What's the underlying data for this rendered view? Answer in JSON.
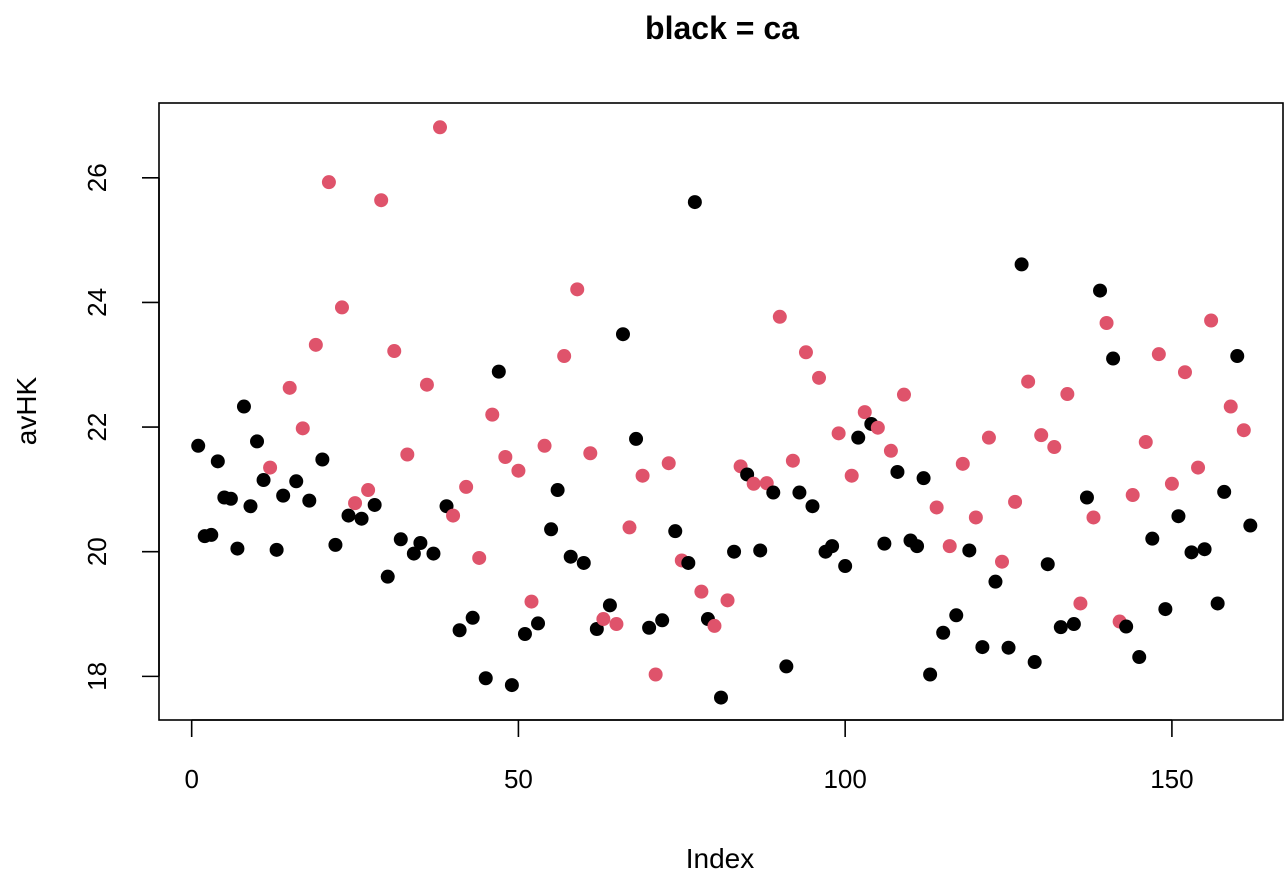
{
  "chart_data": {
    "type": "scatter",
    "title": "black = ca",
    "xlabel": "Index",
    "ylabel": "avHK",
    "xlim": [
      -5,
      167
    ],
    "ylim": [
      17.3,
      27.2
    ],
    "xticks": [
      0,
      50,
      100,
      150
    ],
    "yticks": [
      18,
      20,
      22,
      24,
      26
    ],
    "colors": {
      "ca": "#000000",
      "other": "#df536b"
    },
    "points": [
      {
        "x": 1,
        "y": 21.7,
        "c": "ca"
      },
      {
        "x": 2,
        "y": 20.25,
        "c": "ca"
      },
      {
        "x": 3,
        "y": 20.27,
        "c": "ca"
      },
      {
        "x": 4,
        "y": 21.45,
        "c": "ca"
      },
      {
        "x": 5,
        "y": 20.87,
        "c": "ca"
      },
      {
        "x": 6,
        "y": 20.85,
        "c": "ca"
      },
      {
        "x": 7,
        "y": 20.05,
        "c": "ca"
      },
      {
        "x": 8,
        "y": 22.33,
        "c": "ca"
      },
      {
        "x": 9,
        "y": 20.73,
        "c": "ca"
      },
      {
        "x": 10,
        "y": 21.77,
        "c": "ca"
      },
      {
        "x": 11,
        "y": 21.15,
        "c": "ca"
      },
      {
        "x": 12,
        "y": 21.35,
        "c": "other"
      },
      {
        "x": 13,
        "y": 20.03,
        "c": "ca"
      },
      {
        "x": 14,
        "y": 20.9,
        "c": "ca"
      },
      {
        "x": 15,
        "y": 22.63,
        "c": "other"
      },
      {
        "x": 16,
        "y": 21.13,
        "c": "ca"
      },
      {
        "x": 17,
        "y": 21.98,
        "c": "other"
      },
      {
        "x": 18,
        "y": 20.82,
        "c": "ca"
      },
      {
        "x": 19,
        "y": 23.32,
        "c": "other"
      },
      {
        "x": 20,
        "y": 21.48,
        "c": "ca"
      },
      {
        "x": 21,
        "y": 25.93,
        "c": "other"
      },
      {
        "x": 22,
        "y": 20.11,
        "c": "ca"
      },
      {
        "x": 23,
        "y": 23.92,
        "c": "other"
      },
      {
        "x": 24,
        "y": 20.58,
        "c": "ca"
      },
      {
        "x": 25,
        "y": 20.78,
        "c": "other"
      },
      {
        "x": 26,
        "y": 20.53,
        "c": "ca"
      },
      {
        "x": 27,
        "y": 20.99,
        "c": "other"
      },
      {
        "x": 28,
        "y": 20.75,
        "c": "ca"
      },
      {
        "x": 29,
        "y": 25.64,
        "c": "other"
      },
      {
        "x": 30,
        "y": 19.6,
        "c": "ca"
      },
      {
        "x": 31,
        "y": 23.22,
        "c": "other"
      },
      {
        "x": 32,
        "y": 20.2,
        "c": "ca"
      },
      {
        "x": 33,
        "y": 21.56,
        "c": "other"
      },
      {
        "x": 34,
        "y": 19.97,
        "c": "ca"
      },
      {
        "x": 35,
        "y": 20.14,
        "c": "ca"
      },
      {
        "x": 36,
        "y": 22.68,
        "c": "other"
      },
      {
        "x": 37,
        "y": 19.97,
        "c": "ca"
      },
      {
        "x": 38,
        "y": 26.81,
        "c": "other"
      },
      {
        "x": 39,
        "y": 20.73,
        "c": "ca"
      },
      {
        "x": 40,
        "y": 20.58,
        "c": "other"
      },
      {
        "x": 41,
        "y": 18.74,
        "c": "ca"
      },
      {
        "x": 42,
        "y": 21.04,
        "c": "other"
      },
      {
        "x": 43,
        "y": 18.94,
        "c": "ca"
      },
      {
        "x": 44,
        "y": 19.9,
        "c": "other"
      },
      {
        "x": 45,
        "y": 17.97,
        "c": "ca"
      },
      {
        "x": 46,
        "y": 22.2,
        "c": "other"
      },
      {
        "x": 47,
        "y": 22.89,
        "c": "ca"
      },
      {
        "x": 48,
        "y": 21.52,
        "c": "other"
      },
      {
        "x": 49,
        "y": 17.86,
        "c": "ca"
      },
      {
        "x": 50,
        "y": 21.3,
        "c": "other"
      },
      {
        "x": 51,
        "y": 18.68,
        "c": "ca"
      },
      {
        "x": 52,
        "y": 19.2,
        "c": "other"
      },
      {
        "x": 53,
        "y": 18.85,
        "c": "ca"
      },
      {
        "x": 54,
        "y": 21.7,
        "c": "other"
      },
      {
        "x": 55,
        "y": 20.36,
        "c": "ca"
      },
      {
        "x": 56,
        "y": 20.99,
        "c": "ca"
      },
      {
        "x": 57,
        "y": 23.14,
        "c": "other"
      },
      {
        "x": 58,
        "y": 19.92,
        "c": "ca"
      },
      {
        "x": 59,
        "y": 24.21,
        "c": "other"
      },
      {
        "x": 60,
        "y": 19.82,
        "c": "ca"
      },
      {
        "x": 61,
        "y": 21.58,
        "c": "other"
      },
      {
        "x": 62,
        "y": 18.76,
        "c": "ca"
      },
      {
        "x": 63,
        "y": 18.92,
        "c": "other"
      },
      {
        "x": 64,
        "y": 19.14,
        "c": "ca"
      },
      {
        "x": 65,
        "y": 18.84,
        "c": "other"
      },
      {
        "x": 66,
        "y": 23.49,
        "c": "ca"
      },
      {
        "x": 67,
        "y": 20.39,
        "c": "other"
      },
      {
        "x": 68,
        "y": 21.81,
        "c": "ca"
      },
      {
        "x": 69,
        "y": 21.22,
        "c": "other"
      },
      {
        "x": 70,
        "y": 18.78,
        "c": "ca"
      },
      {
        "x": 71,
        "y": 18.03,
        "c": "other"
      },
      {
        "x": 72,
        "y": 18.9,
        "c": "ca"
      },
      {
        "x": 73,
        "y": 21.42,
        "c": "other"
      },
      {
        "x": 74,
        "y": 20.33,
        "c": "ca"
      },
      {
        "x": 75,
        "y": 19.86,
        "c": "other"
      },
      {
        "x": 76,
        "y": 19.82,
        "c": "ca"
      },
      {
        "x": 77,
        "y": 25.61,
        "c": "ca"
      },
      {
        "x": 78,
        "y": 19.36,
        "c": "other"
      },
      {
        "x": 79,
        "y": 18.92,
        "c": "ca"
      },
      {
        "x": 80,
        "y": 18.81,
        "c": "other"
      },
      {
        "x": 81,
        "y": 17.66,
        "c": "ca"
      },
      {
        "x": 82,
        "y": 19.22,
        "c": "other"
      },
      {
        "x": 83,
        "y": 20.0,
        "c": "ca"
      },
      {
        "x": 84,
        "y": 21.37,
        "c": "other"
      },
      {
        "x": 85,
        "y": 21.24,
        "c": "ca"
      },
      {
        "x": 86,
        "y": 21.09,
        "c": "other"
      },
      {
        "x": 87,
        "y": 20.02,
        "c": "ca"
      },
      {
        "x": 88,
        "y": 21.1,
        "c": "other"
      },
      {
        "x": 89,
        "y": 20.95,
        "c": "ca"
      },
      {
        "x": 90,
        "y": 23.77,
        "c": "other"
      },
      {
        "x": 91,
        "y": 18.16,
        "c": "ca"
      },
      {
        "x": 92,
        "y": 21.46,
        "c": "other"
      },
      {
        "x": 93,
        "y": 20.95,
        "c": "ca"
      },
      {
        "x": 94,
        "y": 23.2,
        "c": "other"
      },
      {
        "x": 95,
        "y": 20.73,
        "c": "ca"
      },
      {
        "x": 96,
        "y": 22.79,
        "c": "other"
      },
      {
        "x": 97,
        "y": 20.0,
        "c": "ca"
      },
      {
        "x": 98,
        "y": 20.09,
        "c": "ca"
      },
      {
        "x": 99,
        "y": 21.9,
        "c": "other"
      },
      {
        "x": 100,
        "y": 19.77,
        "c": "ca"
      },
      {
        "x": 101,
        "y": 21.22,
        "c": "other"
      },
      {
        "x": 102,
        "y": 21.83,
        "c": "ca"
      },
      {
        "x": 103,
        "y": 22.24,
        "c": "other"
      },
      {
        "x": 104,
        "y": 22.05,
        "c": "ca"
      },
      {
        "x": 105,
        "y": 21.99,
        "c": "other"
      },
      {
        "x": 106,
        "y": 20.13,
        "c": "ca"
      },
      {
        "x": 107,
        "y": 21.62,
        "c": "other"
      },
      {
        "x": 108,
        "y": 21.28,
        "c": "ca"
      },
      {
        "x": 109,
        "y": 22.52,
        "c": "other"
      },
      {
        "x": 110,
        "y": 20.18,
        "c": "ca"
      },
      {
        "x": 111,
        "y": 20.09,
        "c": "ca"
      },
      {
        "x": 112,
        "y": 21.18,
        "c": "ca"
      },
      {
        "x": 113,
        "y": 18.03,
        "c": "ca"
      },
      {
        "x": 114,
        "y": 20.71,
        "c": "other"
      },
      {
        "x": 115,
        "y": 18.7,
        "c": "ca"
      },
      {
        "x": 116,
        "y": 20.09,
        "c": "other"
      },
      {
        "x": 117,
        "y": 18.98,
        "c": "ca"
      },
      {
        "x": 118,
        "y": 21.41,
        "c": "other"
      },
      {
        "x": 119,
        "y": 20.02,
        "c": "ca"
      },
      {
        "x": 120,
        "y": 20.55,
        "c": "other"
      },
      {
        "x": 121,
        "y": 18.47,
        "c": "ca"
      },
      {
        "x": 122,
        "y": 21.83,
        "c": "other"
      },
      {
        "x": 123,
        "y": 19.52,
        "c": "ca"
      },
      {
        "x": 124,
        "y": 19.84,
        "c": "other"
      },
      {
        "x": 125,
        "y": 18.46,
        "c": "ca"
      },
      {
        "x": 126,
        "y": 20.8,
        "c": "other"
      },
      {
        "x": 127,
        "y": 24.61,
        "c": "ca"
      },
      {
        "x": 128,
        "y": 22.73,
        "c": "other"
      },
      {
        "x": 129,
        "y": 18.23,
        "c": "ca"
      },
      {
        "x": 130,
        "y": 21.87,
        "c": "other"
      },
      {
        "x": 131,
        "y": 19.8,
        "c": "ca"
      },
      {
        "x": 132,
        "y": 21.68,
        "c": "other"
      },
      {
        "x": 133,
        "y": 18.79,
        "c": "ca"
      },
      {
        "x": 134,
        "y": 22.53,
        "c": "other"
      },
      {
        "x": 135,
        "y": 18.84,
        "c": "ca"
      },
      {
        "x": 136,
        "y": 19.17,
        "c": "other"
      },
      {
        "x": 137,
        "y": 20.87,
        "c": "ca"
      },
      {
        "x": 138,
        "y": 20.55,
        "c": "other"
      },
      {
        "x": 139,
        "y": 24.19,
        "c": "ca"
      },
      {
        "x": 140,
        "y": 23.67,
        "c": "other"
      },
      {
        "x": 141,
        "y": 23.1,
        "c": "ca"
      },
      {
        "x": 142,
        "y": 18.88,
        "c": "other"
      },
      {
        "x": 143,
        "y": 18.8,
        "c": "ca"
      },
      {
        "x": 144,
        "y": 20.91,
        "c": "other"
      },
      {
        "x": 145,
        "y": 18.31,
        "c": "ca"
      },
      {
        "x": 146,
        "y": 21.76,
        "c": "other"
      },
      {
        "x": 147,
        "y": 20.21,
        "c": "ca"
      },
      {
        "x": 148,
        "y": 23.17,
        "c": "other"
      },
      {
        "x": 149,
        "y": 19.08,
        "c": "ca"
      },
      {
        "x": 150,
        "y": 21.09,
        "c": "other"
      },
      {
        "x": 151,
        "y": 20.57,
        "c": "ca"
      },
      {
        "x": 152,
        "y": 22.88,
        "c": "other"
      },
      {
        "x": 153,
        "y": 19.99,
        "c": "ca"
      },
      {
        "x": 154,
        "y": 21.35,
        "c": "other"
      },
      {
        "x": 155,
        "y": 20.04,
        "c": "ca"
      },
      {
        "x": 156,
        "y": 23.71,
        "c": "other"
      },
      {
        "x": 157,
        "y": 19.17,
        "c": "ca"
      },
      {
        "x": 158,
        "y": 20.96,
        "c": "ca"
      },
      {
        "x": 159,
        "y": 22.33,
        "c": "other"
      },
      {
        "x": 160,
        "y": 23.14,
        "c": "ca"
      },
      {
        "x": 161,
        "y": 21.95,
        "c": "other"
      },
      {
        "x": 162,
        "y": 20.42,
        "c": "ca"
      }
    ]
  }
}
